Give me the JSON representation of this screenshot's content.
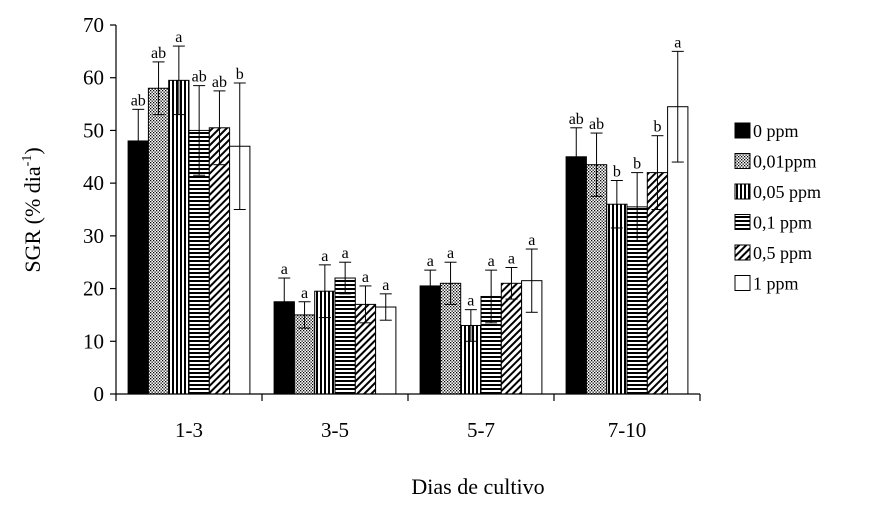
{
  "chart_data": {
    "type": "bar",
    "title": "",
    "xlabel": "Dias de cultivo",
    "ylabel": "SGR (% dia",
    "ylabel_sup": "-1",
    "ylabel_close": ")",
    "ylim": [
      0,
      70
    ],
    "yticks": [
      0,
      10,
      20,
      30,
      40,
      50,
      60,
      70
    ],
    "grid": false,
    "legend_position": "right",
    "categories": [
      "1-3",
      "3-5",
      "5-7",
      "7-10"
    ],
    "series": [
      {
        "name": "0 ppm",
        "fill": "solid-black",
        "values": [
          48,
          17.5,
          20.5,
          45
        ],
        "errors": [
          6,
          4.5,
          3,
          5.5
        ],
        "labels": [
          "ab",
          "a",
          "a",
          "ab"
        ]
      },
      {
        "name": "0,01ppm",
        "fill": "dots",
        "values": [
          58,
          15,
          21,
          43.5
        ],
        "errors": [
          5,
          2.5,
          4,
          6
        ],
        "labels": [
          "ab",
          "a",
          "a",
          "ab"
        ]
      },
      {
        "name": "0,05 ppm",
        "fill": "vertical-lines",
        "values": [
          59.5,
          19.5,
          13,
          36
        ],
        "errors": [
          6.5,
          5,
          3,
          4.5
        ],
        "labels": [
          "a",
          "a",
          "a",
          "b"
        ]
      },
      {
        "name": "0,1 ppm",
        "fill": "horizontal-lines",
        "values": [
          50,
          22,
          18.5,
          35.5
        ],
        "errors": [
          8.5,
          3,
          5,
          6.5
        ],
        "labels": [
          "ab",
          "a",
          "a",
          "b"
        ]
      },
      {
        "name": "0,5 ppm",
        "fill": "diagonal-lines",
        "values": [
          50.5,
          17,
          21,
          42
        ],
        "errors": [
          7,
          3.5,
          3,
          7
        ],
        "labels": [
          "ab",
          "a",
          "a",
          "b"
        ]
      },
      {
        "name": "1 ppm",
        "fill": "white",
        "values": [
          47,
          16.5,
          21.5,
          54.5
        ],
        "errors": [
          12,
          2.5,
          6,
          10.5
        ],
        "labels": [
          "b",
          "a",
          "a",
          "a"
        ]
      }
    ]
  }
}
